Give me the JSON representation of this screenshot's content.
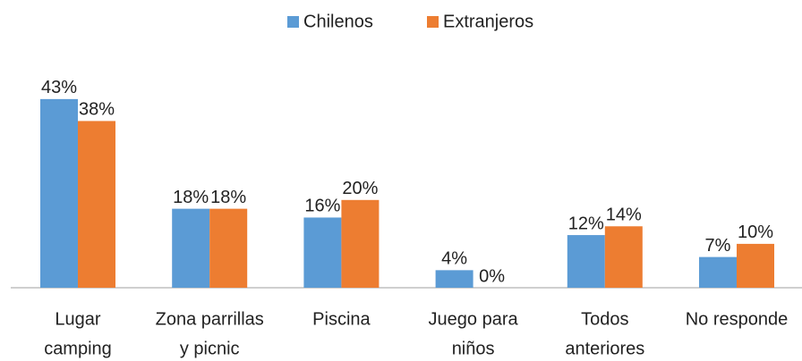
{
  "chart_data": {
    "type": "bar",
    "categories": [
      [
        "Lugar",
        "camping"
      ],
      [
        "Zona parrillas",
        "y picnic"
      ],
      [
        "Piscina"
      ],
      [
        "Juego para",
        "niños"
      ],
      [
        "Todos",
        "anteriores"
      ],
      [
        "No responde"
      ]
    ],
    "series": [
      {
        "name": "Chilenos",
        "color": "#5b9bd5",
        "values": [
          43,
          18,
          16,
          4,
          12,
          7
        ],
        "value_labels": [
          "43%",
          "18%",
          "16%",
          "4%",
          "12%",
          "7%"
        ]
      },
      {
        "name": "Extranjeros",
        "color": "#ed7d31",
        "values": [
          38,
          18,
          20,
          0,
          14,
          10
        ],
        "value_labels": [
          "38%",
          "18%",
          "20%",
          "0%",
          "14%",
          "10%"
        ]
      }
    ],
    "legend": "top"
  }
}
